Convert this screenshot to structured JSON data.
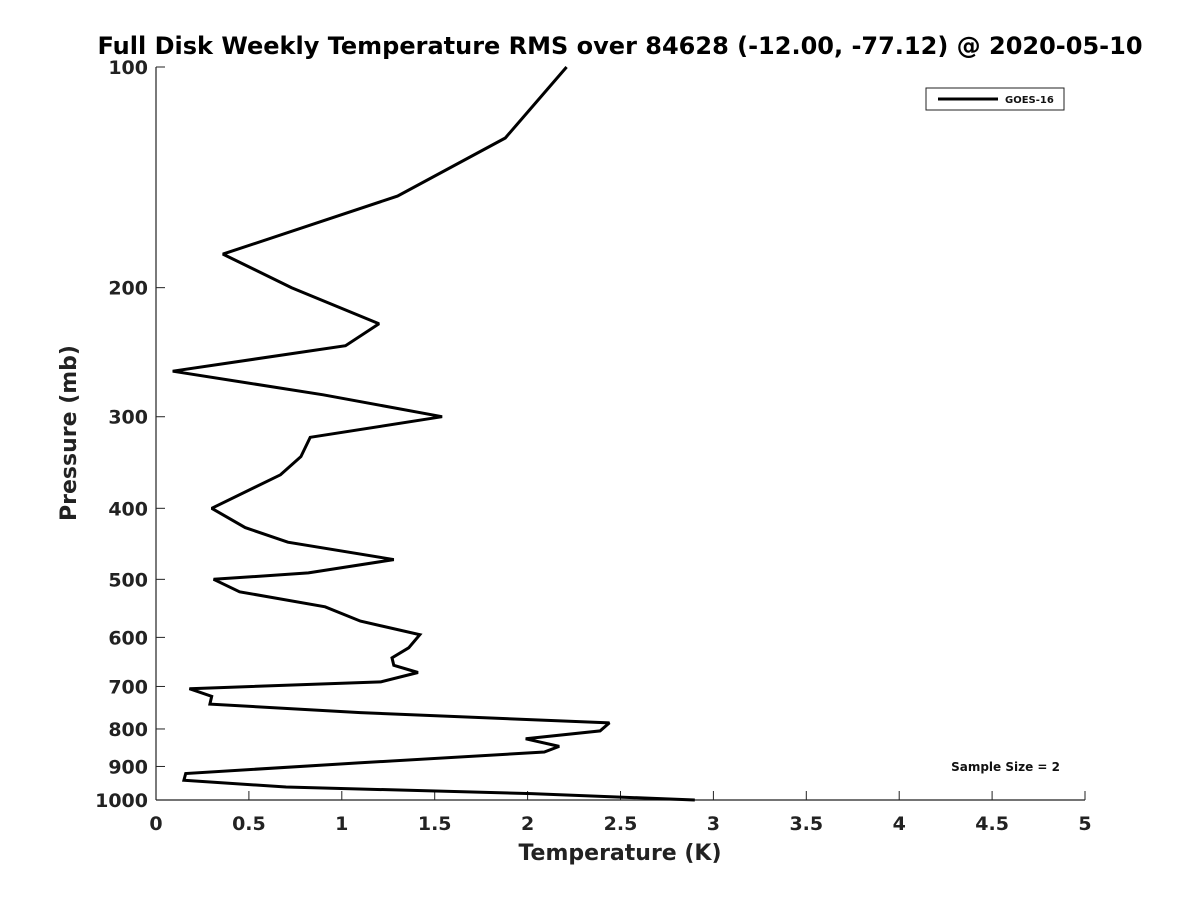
{
  "chart_data": {
    "type": "line",
    "title": "Full Disk Weekly Temperature RMS over 84628 (-12.00, -77.12) @ 2020-05-10",
    "xlabel": "Temperature (K)",
    "ylabel": "Pressure (mb)",
    "xlim": [
      0,
      5
    ],
    "ylim": [
      100,
      1000
    ],
    "y_scale": "log",
    "y_reversed": true,
    "x_ticks": [
      0,
      0.5,
      1,
      1.5,
      2,
      2.5,
      3,
      3.5,
      4,
      4.5,
      5
    ],
    "x_tick_labels": [
      "0",
      "0.5",
      "1",
      "1.5",
      "2",
      "2.5",
      "3",
      "3.5",
      "4",
      "4.5",
      "5"
    ],
    "y_ticks": [
      100,
      200,
      300,
      400,
      500,
      600,
      700,
      800,
      900,
      1000
    ],
    "y_tick_labels": [
      "100",
      "200",
      "300",
      "400",
      "500",
      "600",
      "700",
      "800",
      "900",
      "1000"
    ],
    "grid": false,
    "legend_position": "top-right",
    "annotation": "Sample Size = 2",
    "series": [
      {
        "name": "GOES-16",
        "color": "#000000",
        "x": [
          2.21,
          1.88,
          1.3,
          0.36,
          0.73,
          1.2,
          1.02,
          0.09,
          0.9,
          1.54,
          0.83,
          0.78,
          0.67,
          0.3,
          0.48,
          0.71,
          1.28,
          0.82,
          0.31,
          0.45,
          0.91,
          1.1,
          1.42,
          1.36,
          1.27,
          1.28,
          1.41,
          1.21,
          0.18,
          0.3,
          0.29,
          1.1,
          2.44,
          2.39,
          1.99,
          2.17,
          2.09,
          1.09,
          0.16,
          0.15,
          0.7,
          2.02,
          2.9
        ],
        "y": [
          100,
          125,
          150,
          180,
          200,
          224,
          240,
          260,
          280,
          300,
          320,
          340,
          360,
          400,
          425,
          445,
          470,
          490,
          500,
          520,
          545,
          570,
          595,
          620,
          640,
          655,
          670,
          690,
          705,
          722,
          740,
          760,
          785,
          805,
          825,
          845,
          860,
          890,
          920,
          940,
          960,
          980,
          1000
        ]
      }
    ]
  }
}
